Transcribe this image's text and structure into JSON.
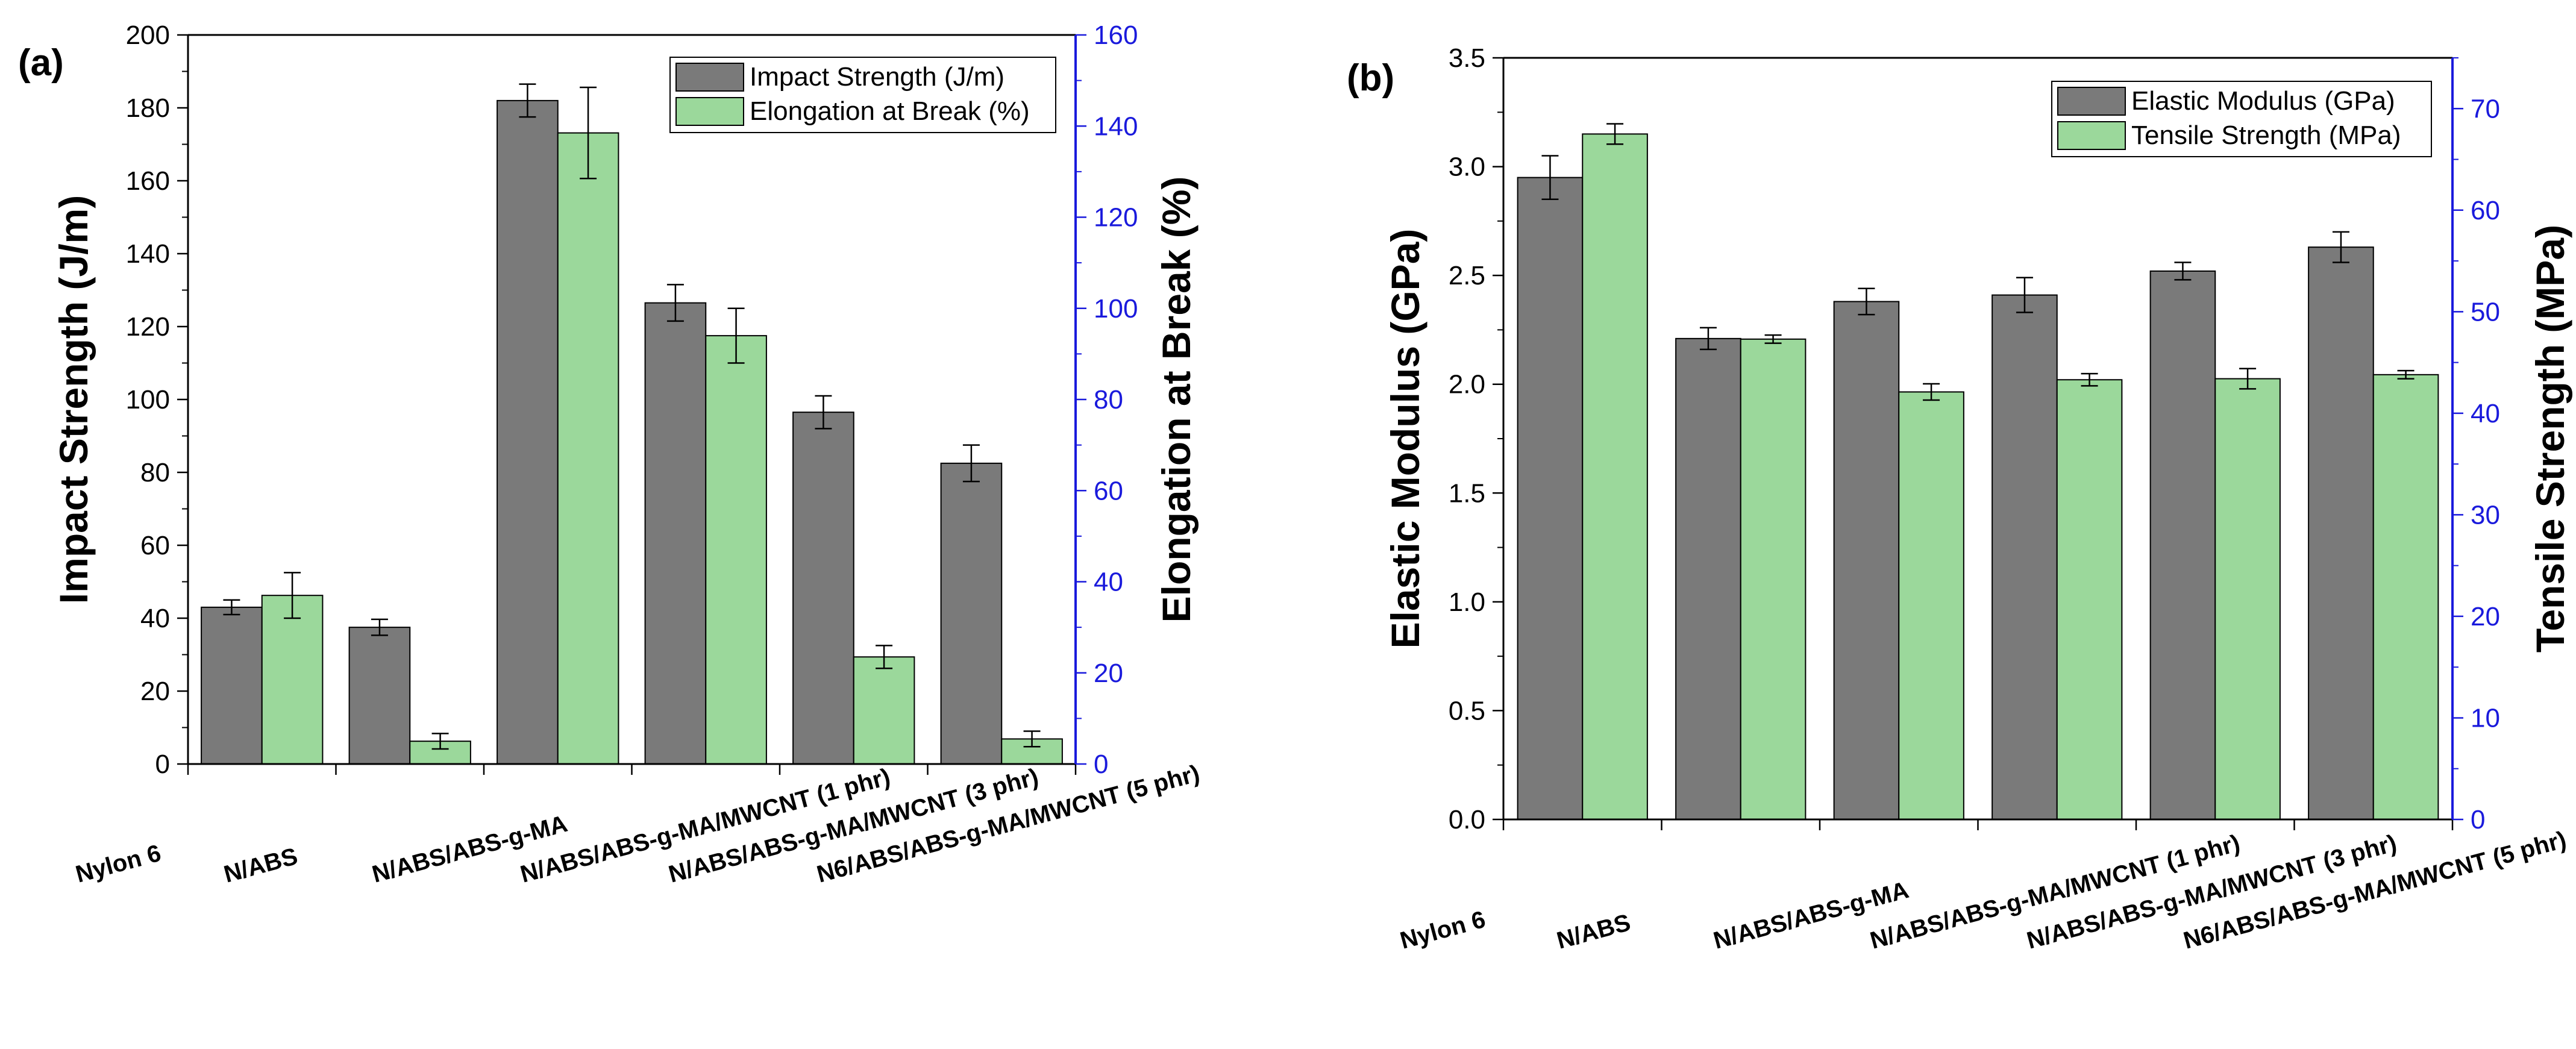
{
  "colors": {
    "series1": "#7a7a7a",
    "series2": "#9bd89b",
    "right_axis": "#1a1adc",
    "axis": "#000000"
  },
  "chart_data": [
    {
      "type": "bar",
      "panel_label": "(a)",
      "categories": [
        "Nylon 6",
        "N/ABS",
        "N/ABS/ABS-g-MA",
        "N/ABS/ABS-g-MA/MWCNT (1 phr)",
        "N/ABS/ABS-g-MA/MWCNT (3 phr)",
        "N6/ABS/ABS-g-MA/MWCNT (5 phr)"
      ],
      "ylabel": "Impact Strength (J/m)",
      "y2label": "Elongation at Break (%)",
      "ylim": [
        0,
        200
      ],
      "y2lim": [
        0,
        160
      ],
      "yticks": [
        0,
        20,
        40,
        60,
        80,
        100,
        120,
        140,
        160,
        180,
        200
      ],
      "y2ticks": [
        0,
        20,
        40,
        60,
        80,
        100,
        120,
        140,
        160
      ],
      "legend_position": "top-right",
      "grid": false,
      "series": [
        {
          "name": "Impact Strength (J/m)",
          "axis": "left",
          "values": [
            43,
            37.5,
            182,
            126.5,
            96.5,
            82.5
          ],
          "errors": [
            2,
            2.2,
            4.5,
            5,
            4.5,
            5
          ]
        },
        {
          "name": "Elongation at Break (%)",
          "axis": "right",
          "values": [
            37,
            5,
            138.5,
            94,
            23.5,
            5.5
          ],
          "errors": [
            5,
            1.7,
            10,
            6,
            2.5,
            1.7
          ]
        }
      ]
    },
    {
      "type": "bar",
      "panel_label": "(b)",
      "categories": [
        "Nylon 6",
        "N/ABS",
        "N/ABS/ABS-g-MA",
        "N/ABS/ABS-g-MA/MWCNT (1 phr)",
        "N/ABS/ABS-g-MA/MWCNT (3 phr)",
        "N6/ABS/ABS-g-MA/MWCNT (5 phr)"
      ],
      "ylabel": "Elastic Modulus (GPa)",
      "y2label": "Tensile Strength  (MPa)",
      "ylim": [
        0,
        3.5
      ],
      "y2lim": [
        0,
        75
      ],
      "yticks": [
        0.0,
        0.5,
        1.0,
        1.5,
        2.0,
        2.5,
        3.0,
        3.5
      ],
      "y2ticks": [
        0,
        10,
        20,
        30,
        40,
        50,
        60,
        70
      ],
      "legend_position": "top-right",
      "grid": false,
      "series": [
        {
          "name": "Elastic Modulus (GPa)",
          "axis": "left",
          "values": [
            2.95,
            2.21,
            2.38,
            2.41,
            2.52,
            2.63
          ],
          "errors": [
            0.1,
            0.05,
            0.06,
            0.08,
            0.04,
            0.07
          ]
        },
        {
          "name": "Tensile Strength  (MPa)",
          "axis": "right",
          "values": [
            67.5,
            47.3,
            42.1,
            43.3,
            43.4,
            43.8
          ],
          "errors": [
            1.0,
            0.4,
            0.8,
            0.6,
            1.0,
            0.4
          ]
        }
      ]
    }
  ]
}
